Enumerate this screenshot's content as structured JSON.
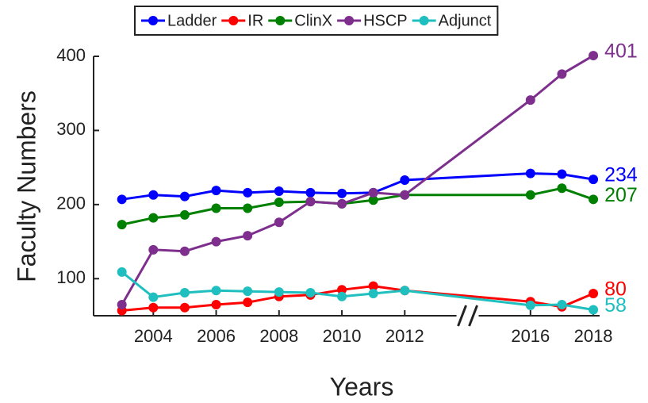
{
  "chart_data": {
    "type": "line",
    "x_label": "Years",
    "y_label": "Faculty Numbers",
    "x": [
      2003,
      2004,
      2005,
      2006,
      2007,
      2008,
      2009,
      2010,
      2011,
      2012,
      2016,
      2017,
      2018
    ],
    "series": [
      {
        "name": "Ladder",
        "color": "#0000ff",
        "values": [
          207,
          213,
          211,
          219,
          216,
          218,
          216,
          215,
          216,
          233,
          242,
          241,
          234
        ]
      },
      {
        "name": "IR",
        "color": "#ff0000",
        "values": [
          57,
          61,
          61,
          65,
          68,
          76,
          78,
          85,
          90,
          84,
          69,
          62,
          80
        ]
      },
      {
        "name": "ClinX",
        "color": "#008000",
        "values": [
          173,
          182,
          186,
          195,
          195,
          203,
          204,
          201,
          206,
          213,
          213,
          222,
          207
        ]
      },
      {
        "name": "HSCP",
        "color": "#7e2f8e",
        "values": [
          65,
          139,
          137,
          150,
          158,
          176,
          204,
          201,
          216,
          213,
          341,
          376,
          401
        ]
      },
      {
        "name": "Adjunct",
        "color": "#1fbfbf",
        "values": [
          109,
          75,
          81,
          84,
          83,
          82,
          81,
          76,
          80,
          84,
          64,
          65,
          58
        ]
      }
    ],
    "xlim": [
      2002.1,
      2018.2
    ],
    "xticks": [
      2004,
      2006,
      2008,
      2010,
      2012,
      2016,
      2018
    ],
    "ylim": [
      50,
      400
    ],
    "yticks": [
      100,
      200,
      300,
      400
    ],
    "legend": "top"
  }
}
